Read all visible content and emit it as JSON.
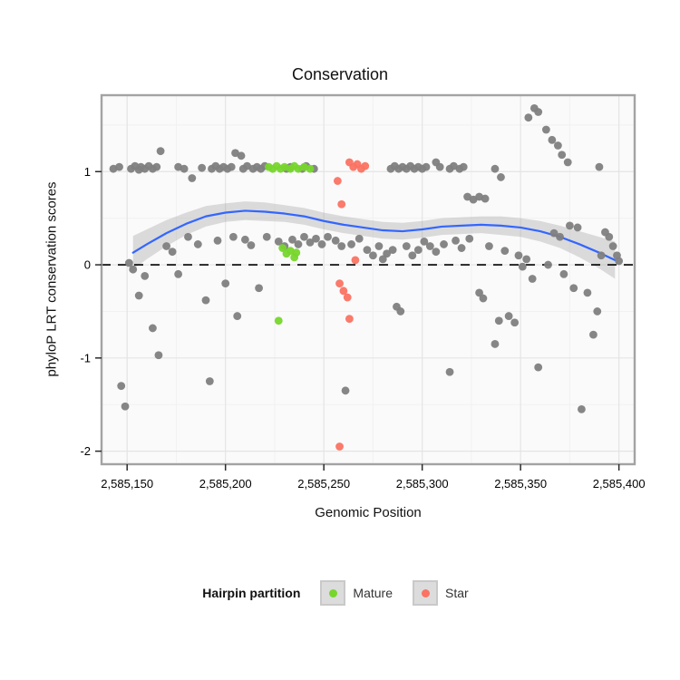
{
  "legend": {
    "title": "Hairpin partition",
    "items": [
      {
        "label": "Mature",
        "color": "#77D62C"
      },
      {
        "label": "Star",
        "color": "#FA7363"
      }
    ]
  },
  "chart_data": {
    "type": "scatter",
    "title": "Conservation",
    "xlabel": "Genomic Position",
    "ylabel": "phyloP LRT conservation scores",
    "xlim": [
      2585137,
      2585408
    ],
    "ylim": [
      -2.14,
      1.82
    ],
    "hline": 0,
    "panel": {
      "background": "#FAFAFA",
      "border": "#A3A3A3",
      "grid_major": "#E4E4E4",
      "grid_minor": "#F1F1F1"
    },
    "grid": {
      "minor_x": [
        2585175,
        2585225,
        2585275,
        2585325,
        2585375
      ],
      "minor_y": [
        -1.5,
        -0.5,
        0.5,
        1.5
      ]
    },
    "axes": {
      "x_ticks": [
        {
          "v": 2585150,
          "label": "2,585,150"
        },
        {
          "v": 2585200,
          "label": "2,585,200"
        },
        {
          "v": 2585250,
          "label": "2,585,250"
        },
        {
          "v": 2585300,
          "label": "2,585,300"
        },
        {
          "v": 2585350,
          "label": "2,585,350"
        },
        {
          "v": 2585400,
          "label": "2,585,400"
        }
      ],
      "y_ticks": [
        {
          "v": 1,
          "label": "1"
        },
        {
          "v": 0,
          "label": "0"
        },
        {
          "v": -1,
          "label": "-1"
        },
        {
          "v": -2,
          "label": "-2"
        }
      ]
    },
    "smooth": {
      "color": "#3366FF",
      "ribbon_color": "#999999",
      "ribbon_opacity": 0.32,
      "band": [
        [
          2585153,
          0.13,
          -0.05,
          0.31
        ],
        [
          2585160,
          0.22,
          0.06,
          0.38
        ],
        [
          2585170,
          0.34,
          0.2,
          0.48
        ],
        [
          2585180,
          0.44,
          0.32,
          0.56
        ],
        [
          2585190,
          0.52,
          0.41,
          0.63
        ],
        [
          2585200,
          0.56,
          0.46,
          0.66
        ],
        [
          2585210,
          0.58,
          0.48,
          0.68
        ],
        [
          2585220,
          0.57,
          0.47,
          0.67
        ],
        [
          2585230,
          0.55,
          0.46,
          0.64
        ],
        [
          2585240,
          0.52,
          0.43,
          0.61
        ],
        [
          2585250,
          0.47,
          0.38,
          0.56
        ],
        [
          2585260,
          0.43,
          0.34,
          0.52
        ],
        [
          2585270,
          0.4,
          0.31,
          0.49
        ],
        [
          2585280,
          0.37,
          0.28,
          0.46
        ],
        [
          2585290,
          0.36,
          0.27,
          0.45
        ],
        [
          2585300,
          0.38,
          0.29,
          0.47
        ],
        [
          2585310,
          0.41,
          0.32,
          0.5
        ],
        [
          2585320,
          0.42,
          0.33,
          0.51
        ],
        [
          2585330,
          0.43,
          0.34,
          0.52
        ],
        [
          2585340,
          0.42,
          0.32,
          0.52
        ],
        [
          2585350,
          0.4,
          0.3,
          0.5
        ],
        [
          2585360,
          0.36,
          0.25,
          0.47
        ],
        [
          2585370,
          0.3,
          0.18,
          0.42
        ],
        [
          2585380,
          0.22,
          0.08,
          0.36
        ],
        [
          2585390,
          0.13,
          -0.04,
          0.3
        ],
        [
          2585398,
          0.05,
          -0.15,
          0.25
        ]
      ]
    },
    "series": [
      {
        "name": "Other",
        "color": "#7F7F7F",
        "points": [
          [
            2585143,
            1.03
          ],
          [
            2585146,
            1.05
          ],
          [
            2585152,
            1.03
          ],
          [
            2585154,
            1.06
          ],
          [
            2585156,
            1.02
          ],
          [
            2585157,
            1.05
          ],
          [
            2585159,
            1.03
          ],
          [
            2585161,
            1.06
          ],
          [
            2585163,
            1.03
          ],
          [
            2585165,
            1.05
          ],
          [
            2585167,
            1.22
          ],
          [
            2585176,
            1.05
          ],
          [
            2585179,
            1.03
          ],
          [
            2585183,
            0.93
          ],
          [
            2585188,
            1.04
          ],
          [
            2585193,
            1.03
          ],
          [
            2585195,
            1.06
          ],
          [
            2585197,
            1.03
          ],
          [
            2585199,
            1.05
          ],
          [
            2585201,
            1.03
          ],
          [
            2585203,
            1.05
          ],
          [
            2585205,
            1.2
          ],
          [
            2585208,
            1.17
          ],
          [
            2585209,
            1.03
          ],
          [
            2585211,
            1.06
          ],
          [
            2585214,
            1.03
          ],
          [
            2585216,
            1.05
          ],
          [
            2585218,
            1.03
          ],
          [
            2585220,
            1.06
          ],
          [
            2585231,
            1.03
          ],
          [
            2585233,
            1.05
          ],
          [
            2585239,
            1.03
          ],
          [
            2585241,
            1.06
          ],
          [
            2585245,
            1.03
          ],
          [
            2585284,
            1.03
          ],
          [
            2585286,
            1.06
          ],
          [
            2585288,
            1.03
          ],
          [
            2585290,
            1.05
          ],
          [
            2585292,
            1.03
          ],
          [
            2585294,
            1.06
          ],
          [
            2585296,
            1.03
          ],
          [
            2585298,
            1.05
          ],
          [
            2585300,
            1.03
          ],
          [
            2585302,
            1.05
          ],
          [
            2585307,
            1.1
          ],
          [
            2585309,
            1.05
          ],
          [
            2585314,
            1.03
          ],
          [
            2585316,
            1.06
          ],
          [
            2585319,
            1.03
          ],
          [
            2585321,
            1.05
          ],
          [
            2585337,
            1.03
          ],
          [
            2585340,
            0.94
          ],
          [
            2585354,
            1.58
          ],
          [
            2585357,
            1.68
          ],
          [
            2585359,
            1.64
          ],
          [
            2585363,
            1.45
          ],
          [
            2585366,
            1.34
          ],
          [
            2585369,
            1.28
          ],
          [
            2585371,
            1.18
          ],
          [
            2585374,
            1.1
          ],
          [
            2585390,
            1.05
          ],
          [
            2585323,
            0.73
          ],
          [
            2585326,
            0.7
          ],
          [
            2585329,
            0.73
          ],
          [
            2585332,
            0.71
          ],
          [
            2585151,
            0.02
          ],
          [
            2585153,
            -0.05
          ],
          [
            2585147,
            -1.3
          ],
          [
            2585149,
            -1.52
          ],
          [
            2585156,
            -0.33
          ],
          [
            2585159,
            -0.12
          ],
          [
            2585163,
            -0.68
          ],
          [
            2585166,
            -0.97
          ],
          [
            2585170,
            0.2
          ],
          [
            2585173,
            0.14
          ],
          [
            2585176,
            -0.1
          ],
          [
            2585181,
            0.3
          ],
          [
            2585186,
            0.22
          ],
          [
            2585190,
            -0.38
          ],
          [
            2585192,
            -1.25
          ],
          [
            2585196,
            0.26
          ],
          [
            2585200,
            -0.2
          ],
          [
            2585204,
            0.3
          ],
          [
            2585206,
            -0.55
          ],
          [
            2585210,
            0.27
          ],
          [
            2585213,
            0.21
          ],
          [
            2585217,
            -0.25
          ],
          [
            2585221,
            0.3
          ],
          [
            2585227,
            0.25
          ],
          [
            2585230,
            0.2
          ],
          [
            2585234,
            0.27
          ],
          [
            2585237,
            0.22
          ],
          [
            2585240,
            0.3
          ],
          [
            2585243,
            0.24
          ],
          [
            2585246,
            0.28
          ],
          [
            2585249,
            0.22
          ],
          [
            2585252,
            0.3
          ],
          [
            2585256,
            0.26
          ],
          [
            2585259,
            0.2
          ],
          [
            2585261,
            -1.35
          ],
          [
            2585264,
            0.22
          ],
          [
            2585268,
            0.28
          ],
          [
            2585272,
            0.16
          ],
          [
            2585275,
            0.1
          ],
          [
            2585278,
            0.2
          ],
          [
            2585280,
            0.06
          ],
          [
            2585282,
            0.12
          ],
          [
            2585285,
            0.16
          ],
          [
            2585287,
            -0.45
          ],
          [
            2585289,
            -0.5
          ],
          [
            2585292,
            0.2
          ],
          [
            2585295,
            0.1
          ],
          [
            2585298,
            0.16
          ],
          [
            2585301,
            0.25
          ],
          [
            2585304,
            0.2
          ],
          [
            2585307,
            0.14
          ],
          [
            2585311,
            0.22
          ],
          [
            2585314,
            -1.15
          ],
          [
            2585317,
            0.26
          ],
          [
            2585320,
            0.18
          ],
          [
            2585324,
            0.28
          ],
          [
            2585329,
            -0.3
          ],
          [
            2585331,
            -0.36
          ],
          [
            2585334,
            0.2
          ],
          [
            2585337,
            -0.85
          ],
          [
            2585339,
            -0.6
          ],
          [
            2585342,
            0.15
          ],
          [
            2585344,
            -0.55
          ],
          [
            2585347,
            -0.62
          ],
          [
            2585349,
            0.1
          ],
          [
            2585351,
            -0.02
          ],
          [
            2585353,
            0.06
          ],
          [
            2585356,
            -0.15
          ],
          [
            2585359,
            -1.1
          ],
          [
            2585364,
            0.0
          ],
          [
            2585367,
            0.34
          ],
          [
            2585370,
            0.3
          ],
          [
            2585372,
            -0.1
          ],
          [
            2585375,
            0.42
          ],
          [
            2585377,
            -0.25
          ],
          [
            2585379,
            0.4
          ],
          [
            2585381,
            -1.55
          ],
          [
            2585384,
            -0.3
          ],
          [
            2585387,
            -0.75
          ],
          [
            2585389,
            -0.5
          ],
          [
            2585391,
            0.1
          ],
          [
            2585393,
            0.35
          ],
          [
            2585395,
            0.3
          ],
          [
            2585397,
            0.2
          ],
          [
            2585399,
            0.1
          ],
          [
            2585400,
            0.04
          ]
        ]
      },
      {
        "name": "Mature",
        "color": "#77D62C",
        "points": [
          [
            2585222,
            1.05
          ],
          [
            2585224,
            1.03
          ],
          [
            2585226,
            1.06
          ],
          [
            2585228,
            1.03
          ],
          [
            2585230,
            1.05
          ],
          [
            2585233,
            1.03
          ],
          [
            2585235,
            1.06
          ],
          [
            2585237,
            1.03
          ],
          [
            2585240,
            1.05
          ],
          [
            2585243,
            1.03
          ],
          [
            2585229,
            0.18
          ],
          [
            2585231,
            0.12
          ],
          [
            2585233,
            0.15
          ],
          [
            2585235,
            0.08
          ],
          [
            2585236,
            0.13
          ],
          [
            2585227,
            -0.6
          ]
        ]
      },
      {
        "name": "Star",
        "color": "#FA7363",
        "points": [
          [
            2585257,
            0.9
          ],
          [
            2585259,
            0.65
          ],
          [
            2585263,
            1.1
          ],
          [
            2585265,
            1.05
          ],
          [
            2585267,
            1.08
          ],
          [
            2585269,
            1.03
          ],
          [
            2585271,
            1.06
          ],
          [
            2585266,
            0.05
          ],
          [
            2585258,
            -0.2
          ],
          [
            2585260,
            -0.28
          ],
          [
            2585262,
            -0.35
          ],
          [
            2585263,
            -0.58
          ],
          [
            2585258,
            -1.95
          ]
        ]
      }
    ]
  }
}
